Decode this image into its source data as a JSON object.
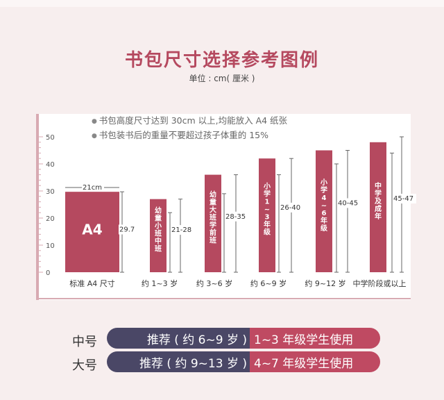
{
  "title": "书包尺寸选择参考图例",
  "unit": "单位 : cm( 厘米 )",
  "notes": [
    "书包高度尺寸达到 30cm 以上,均能放入 A4 纸张",
    "书包装书后的重量不要超过孩子体重的 15%"
  ],
  "chart_data": {
    "type": "bar",
    "ylim": [
      0,
      50
    ],
    "yticks": [
      0,
      10,
      20,
      30,
      40,
      50
    ],
    "grid": false,
    "colors": {
      "bar": "#b5495f",
      "axis": "#d8aab2",
      "text": "#333333",
      "dim": "#777777"
    },
    "categories": [
      "标准 A4 尺寸",
      "约 1~3 岁",
      "约 3~6 岁",
      "约 6~9 岁",
      "约 9~12 岁",
      "中学阶段或以上"
    ],
    "values": [
      29.7,
      27,
      36,
      42,
      45,
      48
    ],
    "bar_labels": [
      "A4",
      "幼童小班 中班",
      "幼童大班学前班",
      "小学1~3年级",
      "小学4~6年级",
      "中学及成年"
    ],
    "range_labels": [
      "29.7",
      "21-28",
      "28-35",
      "26-40",
      "40-45",
      "45-47"
    ],
    "ranges": [
      [
        0,
        29.7
      ],
      [
        0,
        27
      ],
      [
        0,
        36
      ],
      [
        0,
        42
      ],
      [
        0,
        45
      ],
      [
        0,
        50
      ]
    ],
    "inner_ranges": [
      [
        0,
        29.7
      ],
      [
        0,
        22
      ],
      [
        0,
        29
      ],
      [
        0,
        36
      ],
      [
        0,
        40
      ],
      [
        0,
        44
      ]
    ],
    "width_annotation": "21cm"
  },
  "recommendations": [
    {
      "size": "中号",
      "recommend": "推荐 ( 约 6~9 岁 )",
      "grades": "1~3 年级学生使用"
    },
    {
      "size": "大号",
      "recommend": "推荐 ( 约 9~13 岁 )",
      "grades": "4~7 年级学生使用"
    }
  ]
}
